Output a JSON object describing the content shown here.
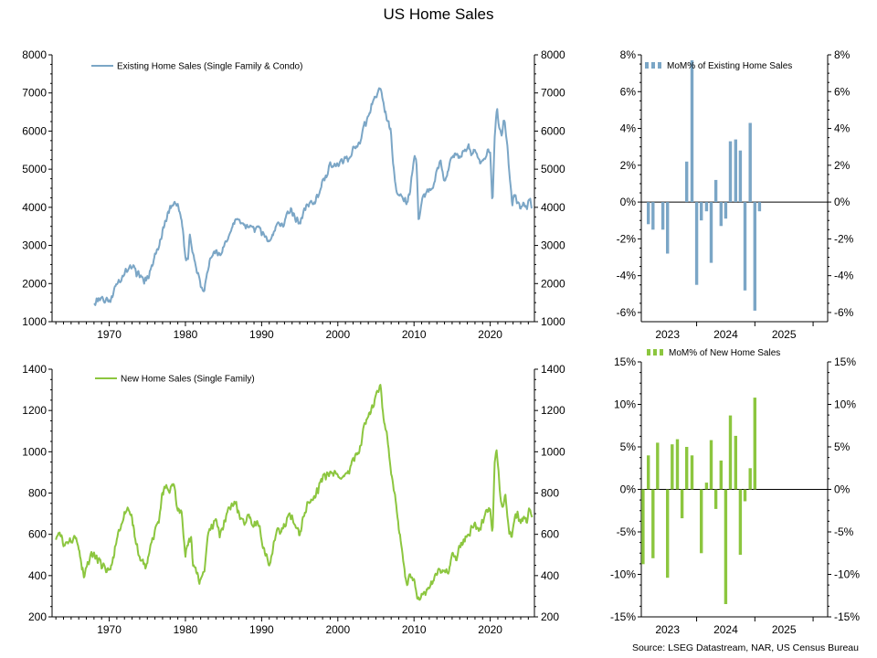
{
  "title": "US Home Sales",
  "source": "Source: LSEG Datastream, NAR, US Census Bureau",
  "colors": {
    "existing": "#7ba6c6",
    "new": "#8cc63f",
    "axis": "#000000"
  },
  "chart_data": [
    {
      "id": "existing-sales",
      "type": "line",
      "title": "",
      "series": [
        {
          "name": "Existing Home Sales (Single Family & Condo)",
          "color": "#7ba6c6"
        }
      ],
      "x_domain": [
        1962.5,
        2025.8
      ],
      "ylim": [
        1000,
        8000
      ],
      "y_ticks": [
        1000,
        2000,
        3000,
        4000,
        5000,
        6000,
        7000,
        8000
      ],
      "y_tick_labels": [
        "1000",
        "2000",
        "3000",
        "4000",
        "5000",
        "6000",
        "7000",
        "8000"
      ],
      "x_ticks": [
        1970,
        1980,
        1990,
        2000,
        2010,
        2020
      ],
      "x_tick_labels": [
        "1970",
        "1980",
        "1990",
        "2000",
        "2010",
        "2020"
      ],
      "anchors": [
        [
          1968.0,
          1480
        ],
        [
          1968.5,
          1560
        ],
        [
          1969.0,
          1620
        ],
        [
          1969.5,
          1550
        ],
        [
          1970.0,
          1500
        ],
        [
          1970.6,
          1780
        ],
        [
          1971.0,
          1980
        ],
        [
          1971.5,
          2100
        ],
        [
          1972.0,
          2250
        ],
        [
          1972.5,
          2400
        ],
        [
          1973.0,
          2450
        ],
        [
          1973.6,
          2250
        ],
        [
          1974.0,
          2250
        ],
        [
          1974.6,
          2050
        ],
        [
          1975.0,
          2150
        ],
        [
          1975.6,
          2450
        ],
        [
          1976.0,
          2750
        ],
        [
          1976.6,
          3050
        ],
        [
          1977.0,
          3400
        ],
        [
          1977.6,
          3800
        ],
        [
          1978.0,
          4000
        ],
        [
          1978.5,
          4100
        ],
        [
          1979.0,
          4000
        ],
        [
          1979.5,
          3700
        ],
        [
          1980.0,
          2700
        ],
        [
          1980.3,
          2600
        ],
        [
          1980.6,
          3300
        ],
        [
          1981.0,
          2800
        ],
        [
          1981.5,
          2300
        ],
        [
          1982.0,
          1950
        ],
        [
          1982.5,
          1850
        ],
        [
          1983.0,
          2450
        ],
        [
          1983.5,
          2800
        ],
        [
          1984.0,
          2900
        ],
        [
          1984.5,
          2700
        ],
        [
          1985.0,
          3000
        ],
        [
          1986.0,
          3400
        ],
        [
          1986.5,
          3700
        ],
        [
          1987.0,
          3750
        ],
        [
          1987.5,
          3500
        ],
        [
          1988.0,
          3550
        ],
        [
          1988.5,
          3550
        ],
        [
          1989.0,
          3400
        ],
        [
          1989.5,
          3450
        ],
        [
          1990.0,
          3350
        ],
        [
          1990.5,
          3200
        ],
        [
          1991.0,
          3050
        ],
        [
          1991.5,
          3300
        ],
        [
          1992.0,
          3550
        ],
        [
          1992.5,
          3500
        ],
        [
          1993.0,
          3600
        ],
        [
          1993.5,
          3850
        ],
        [
          1994.0,
          3900
        ],
        [
          1994.5,
          3700
        ],
        [
          1995.0,
          3600
        ],
        [
          1995.5,
          3900
        ],
        [
          1996.0,
          4050
        ],
        [
          1996.5,
          4100
        ],
        [
          1997.0,
          4150
        ],
        [
          1997.5,
          4350
        ],
        [
          1998.0,
          4650
        ],
        [
          1998.5,
          4800
        ],
        [
          1999.0,
          5150
        ],
        [
          1999.5,
          5150
        ],
        [
          2000.0,
          5050
        ],
        [
          2000.5,
          5200
        ],
        [
          2001.0,
          5250
        ],
        [
          2001.5,
          5300
        ],
        [
          2002.0,
          5500
        ],
        [
          2002.5,
          5600
        ],
        [
          2003.0,
          5750
        ],
        [
          2003.5,
          6200
        ],
        [
          2004.0,
          6300
        ],
        [
          2004.5,
          6700
        ],
        [
          2005.0,
          6900
        ],
        [
          2005.6,
          7150
        ],
        [
          2006.0,
          6700
        ],
        [
          2006.5,
          6300
        ],
        [
          2007.0,
          5900
        ],
        [
          2007.3,
          5000
        ],
        [
          2007.7,
          4500
        ],
        [
          2008.0,
          4400
        ],
        [
          2008.5,
          4300
        ],
        [
          2009.0,
          4100
        ],
        [
          2009.5,
          4500
        ],
        [
          2009.9,
          5200
        ],
        [
          2010.3,
          5300
        ],
        [
          2010.6,
          3600
        ],
        [
          2011.0,
          4200
        ],
        [
          2011.5,
          4350
        ],
        [
          2012.0,
          4450
        ],
        [
          2012.5,
          4500
        ],
        [
          2013.0,
          4950
        ],
        [
          2013.5,
          5300
        ],
        [
          2014.0,
          4650
        ],
        [
          2014.5,
          5000
        ],
        [
          2015.0,
          5300
        ],
        [
          2015.5,
          5450
        ],
        [
          2016.0,
          5300
        ],
        [
          2016.5,
          5450
        ],
        [
          2017.0,
          5600
        ],
        [
          2017.5,
          5450
        ],
        [
          2018.0,
          5450
        ],
        [
          2018.5,
          5200
        ],
        [
          2019.0,
          5150
        ],
        [
          2019.5,
          5400
        ],
        [
          2020.0,
          5500
        ],
        [
          2020.3,
          4050
        ],
        [
          2020.6,
          5950
        ],
        [
          2020.9,
          6550
        ],
        [
          2021.2,
          6000
        ],
        [
          2021.5,
          5950
        ],
        [
          2021.9,
          6350
        ],
        [
          2022.2,
          5700
        ],
        [
          2022.5,
          4900
        ],
        [
          2022.9,
          4100
        ],
        [
          2023.2,
          4400
        ],
        [
          2023.6,
          4050
        ],
        [
          2024.0,
          3950
        ],
        [
          2024.4,
          4100
        ],
        [
          2024.8,
          3950
        ],
        [
          2025.1,
          4250
        ],
        [
          2025.5,
          4000
        ]
      ],
      "noise_amplitude": 110
    },
    {
      "id": "existing-mom",
      "type": "bar",
      "title": "",
      "series": [
        {
          "name": "MoM% of Existing Home Sales",
          "color": "#7ba6c6"
        }
      ],
      "x_domain": [
        2022.55,
        2025.75
      ],
      "ylim": [
        -6.5,
        8
      ],
      "y_ticks": [
        -6,
        -4,
        -2,
        0,
        2,
        4,
        6,
        8
      ],
      "y_tick_labels": [
        "-6%",
        "-4%",
        "-2%",
        "0%",
        "2%",
        "4%",
        "6%",
        "8%"
      ],
      "x_tick_labels": [
        {
          "label": "2023",
          "x": 2023.0
        },
        {
          "label": "2024",
          "x": 2024.0
        },
        {
          "label": "2025",
          "x": 2025.0
        }
      ],
      "year_boundaries": [
        2022.5,
        2023.5,
        2024.5,
        2025.5
      ],
      "values": [
        [
          2022.67,
          -1.2
        ],
        [
          2022.75,
          -1.5
        ],
        [
          2022.92,
          -1.5
        ],
        [
          2023.0,
          -2.8
        ],
        [
          2023.33,
          2.2
        ],
        [
          2023.42,
          7.7
        ],
        [
          2023.5,
          -4.5
        ],
        [
          2023.58,
          -1.0
        ],
        [
          2023.67,
          -0.5
        ],
        [
          2023.75,
          -3.3
        ],
        [
          2023.83,
          1.2
        ],
        [
          2023.92,
          -1.3
        ],
        [
          2024.0,
          -0.9
        ],
        [
          2024.08,
          3.3
        ],
        [
          2024.17,
          3.4
        ],
        [
          2024.25,
          2.8
        ],
        [
          2024.33,
          -4.8
        ],
        [
          2024.42,
          4.3
        ],
        [
          2024.5,
          -5.9
        ],
        [
          2024.58,
          -0.5
        ]
      ]
    },
    {
      "id": "new-sales",
      "type": "line",
      "title": "",
      "series": [
        {
          "name": "New Home Sales (Single Family)",
          "color": "#8cc63f"
        }
      ],
      "x_domain": [
        1962.5,
        2025.8
      ],
      "ylim": [
        200,
        1400
      ],
      "y_ticks": [
        200,
        400,
        600,
        800,
        1000,
        1200,
        1400
      ],
      "y_tick_labels": [
        "200",
        "400",
        "600",
        "800",
        "1000",
        "1200",
        "1400"
      ],
      "x_ticks": [
        1970,
        1980,
        1990,
        2000,
        2010,
        2020
      ],
      "x_tick_labels": [
        "1970",
        "1980",
        "1990",
        "2000",
        "2010",
        "2020"
      ],
      "anchors": [
        [
          1963.0,
          580
        ],
        [
          1963.5,
          600
        ],
        [
          1964.0,
          560
        ],
        [
          1964.5,
          580
        ],
        [
          1965.0,
          570
        ],
        [
          1965.5,
          590
        ],
        [
          1966.0,
          520
        ],
        [
          1966.7,
          400
        ],
        [
          1967.0,
          440
        ],
        [
          1967.5,
          490
        ],
        [
          1968.0,
          500
        ],
        [
          1968.5,
          480
        ],
        [
          1969.0,
          450
        ],
        [
          1969.5,
          440
        ],
        [
          1970.0,
          420
        ],
        [
          1970.5,
          470
        ],
        [
          1971.0,
          580
        ],
        [
          1971.5,
          640
        ],
        [
          1972.0,
          700
        ],
        [
          1972.5,
          720
        ],
        [
          1973.0,
          680
        ],
        [
          1973.5,
          570
        ],
        [
          1974.0,
          480
        ],
        [
          1974.5,
          450
        ],
        [
          1975.0,
          460
        ],
        [
          1975.5,
          560
        ],
        [
          1976.0,
          620
        ],
        [
          1976.5,
          660
        ],
        [
          1977.0,
          800
        ],
        [
          1977.5,
          830
        ],
        [
          1978.0,
          820
        ],
        [
          1978.5,
          840
        ],
        [
          1979.0,
          720
        ],
        [
          1979.5,
          710
        ],
        [
          1980.0,
          490
        ],
        [
          1980.4,
          560
        ],
        [
          1980.8,
          570
        ],
        [
          1981.0,
          460
        ],
        [
          1981.5,
          400
        ],
        [
          1982.0,
          370
        ],
        [
          1982.5,
          440
        ],
        [
          1983.0,
          600
        ],
        [
          1983.5,
          640
        ],
        [
          1984.0,
          680
        ],
        [
          1984.5,
          600
        ],
        [
          1985.0,
          650
        ],
        [
          1985.5,
          700
        ],
        [
          1986.0,
          740
        ],
        [
          1986.5,
          760
        ],
        [
          1987.0,
          700
        ],
        [
          1987.5,
          660
        ],
        [
          1988.0,
          670
        ],
        [
          1988.5,
          680
        ],
        [
          1989.0,
          640
        ],
        [
          1989.5,
          660
        ],
        [
          1990.0,
          580
        ],
        [
          1990.5,
          500
        ],
        [
          1991.0,
          450
        ],
        [
          1991.5,
          530
        ],
        [
          1992.0,
          630
        ],
        [
          1992.5,
          620
        ],
        [
          1993.0,
          640
        ],
        [
          1993.5,
          700
        ],
        [
          1994.0,
          690
        ],
        [
          1994.5,
          650
        ],
        [
          1995.0,
          600
        ],
        [
          1995.5,
          690
        ],
        [
          1996.0,
          740
        ],
        [
          1996.5,
          770
        ],
        [
          1997.0,
          790
        ],
        [
          1997.5,
          820
        ],
        [
          1998.0,
          870
        ],
        [
          1998.5,
          880
        ],
        [
          1999.0,
          890
        ],
        [
          1999.5,
          890
        ],
        [
          2000.0,
          880
        ],
        [
          2000.5,
          860
        ],
        [
          2001.0,
          900
        ],
        [
          2001.5,
          900
        ],
        [
          2002.0,
          960
        ],
        [
          2002.5,
          980
        ],
        [
          2003.0,
          1030
        ],
        [
          2003.5,
          1140
        ],
        [
          2004.0,
          1180
        ],
        [
          2004.5,
          1210
        ],
        [
          2005.0,
          1270
        ],
        [
          2005.6,
          1340
        ],
        [
          2006.0,
          1160
        ],
        [
          2006.5,
          1080
        ],
        [
          2007.0,
          880
        ],
        [
          2007.5,
          800
        ],
        [
          2008.0,
          620
        ],
        [
          2008.5,
          500
        ],
        [
          2009.0,
          360
        ],
        [
          2009.5,
          400
        ],
        [
          2010.0,
          380
        ],
        [
          2010.5,
          290
        ],
        [
          2011.0,
          300
        ],
        [
          2011.5,
          300
        ],
        [
          2012.0,
          340
        ],
        [
          2012.5,
          370
        ],
        [
          2013.0,
          420
        ],
        [
          2013.5,
          410
        ],
        [
          2014.0,
          430
        ],
        [
          2014.5,
          420
        ],
        [
          2015.0,
          500
        ],
        [
          2015.5,
          480
        ],
        [
          2016.0,
          540
        ],
        [
          2016.5,
          580
        ],
        [
          2017.0,
          600
        ],
        [
          2017.5,
          620
        ],
        [
          2018.0,
          640
        ],
        [
          2018.5,
          620
        ],
        [
          2019.0,
          660
        ],
        [
          2019.5,
          700
        ],
        [
          2020.0,
          720
        ],
        [
          2020.3,
          580
        ],
        [
          2020.6,
          960
        ],
        [
          2020.8,
          1010
        ],
        [
          2021.2,
          840
        ],
        [
          2021.6,
          720
        ],
        [
          2022.0,
          780
        ],
        [
          2022.5,
          590
        ],
        [
          2022.9,
          600
        ],
        [
          2023.3,
          680
        ],
        [
          2023.6,
          700
        ],
        [
          2024.0,
          650
        ],
        [
          2024.4,
          690
        ],
        [
          2024.8,
          660
        ],
        [
          2025.1,
          720
        ],
        [
          2025.5,
          680
        ]
      ],
      "noise_amplitude": 24
    },
    {
      "id": "new-mom",
      "type": "bar",
      "title": "",
      "series": [
        {
          "name": "MoM% of New Home Sales",
          "color": "#8cc63f"
        }
      ],
      "x_domain": [
        2022.55,
        2025.75
      ],
      "ylim": [
        -15,
        15
      ],
      "y_ticks": [
        -15,
        -10,
        -5,
        0,
        5,
        10,
        15
      ],
      "y_tick_labels": [
        "-15%",
        "-10%",
        "-5%",
        "0%",
        "5%",
        "10%",
        "15%"
      ],
      "x_tick_labels": [
        {
          "label": "2023",
          "x": 2023.0
        },
        {
          "label": "2024",
          "x": 2024.0
        },
        {
          "label": "2025",
          "x": 2025.0
        }
      ],
      "year_boundaries": [
        2022.5,
        2023.5,
        2024.5,
        2025.5
      ],
      "values": [
        [
          2022.58,
          -8.8
        ],
        [
          2022.67,
          4.0
        ],
        [
          2022.75,
          -8.1
        ],
        [
          2022.83,
          5.5
        ],
        [
          2023.0,
          -10.4
        ],
        [
          2023.08,
          5.3
        ],
        [
          2023.17,
          5.9
        ],
        [
          2023.25,
          -3.4
        ],
        [
          2023.33,
          5.0
        ],
        [
          2023.42,
          4.0
        ],
        [
          2023.58,
          -7.5
        ],
        [
          2023.67,
          0.8
        ],
        [
          2023.75,
          5.8
        ],
        [
          2023.83,
          -2.3
        ],
        [
          2023.92,
          3.4
        ],
        [
          2024.0,
          -13.5
        ],
        [
          2024.08,
          8.7
        ],
        [
          2024.17,
          6.3
        ],
        [
          2024.25,
          -7.7
        ],
        [
          2024.33,
          -1.4
        ],
        [
          2024.42,
          2.5
        ],
        [
          2024.5,
          10.8
        ]
      ]
    }
  ]
}
